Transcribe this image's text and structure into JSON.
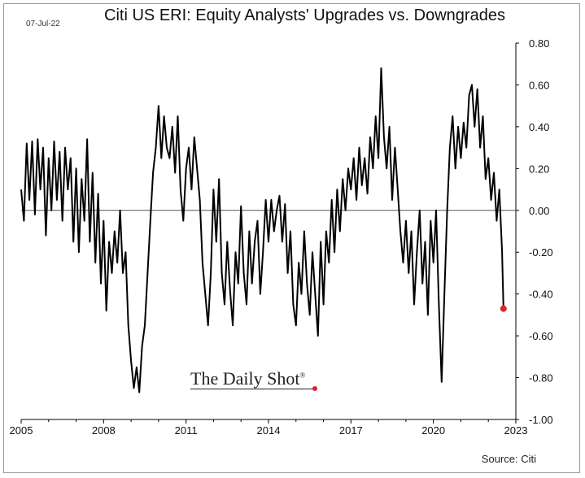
{
  "date_stamp": "07-Jul-22",
  "title": "Citi US ERI: Equity Analysts' Upgrades vs. Downgrades",
  "source": "Source: Citi",
  "watermark": {
    "text": "The Daily Shot",
    "mark": "®"
  },
  "colors": {
    "line": "#000000",
    "highlight": "#e0242a",
    "zero_line": "#555555",
    "axis": "#000000"
  },
  "chart_data": {
    "type": "line",
    "xlabel": "",
    "ylabel": "",
    "xlim": [
      2005.0,
      2023.0
    ],
    "ylim": [
      -1.0,
      0.8
    ],
    "x_ticks": [
      2005,
      2008,
      2011,
      2014,
      2017,
      2020,
      2023
    ],
    "x_tick_labels": [
      "2005",
      "2008",
      "2011",
      "2014",
      "2017",
      "2020",
      "2023"
    ],
    "y_ticks": [
      0.8,
      0.6,
      0.4,
      0.2,
      0.0,
      -0.2,
      -0.4,
      -0.6,
      -0.8,
      -1.0
    ],
    "y_tick_labels": [
      "0.80",
      "0.60",
      "0.40",
      "0.20",
      "0.00",
      "-0.20",
      "-0.40",
      "-0.60",
      "-0.80",
      "-1.00"
    ],
    "y_axis_side": "right",
    "grid": false,
    "zero_line": true,
    "series": [
      {
        "points": [
          [
            2005.0,
            0.1
          ],
          [
            2005.1,
            -0.05
          ],
          [
            2005.2,
            0.32
          ],
          [
            2005.3,
            0.05
          ],
          [
            2005.4,
            0.33
          ],
          [
            2005.5,
            -0.02
          ],
          [
            2005.6,
            0.34
          ],
          [
            2005.7,
            0.1
          ],
          [
            2005.8,
            0.3
          ],
          [
            2005.9,
            -0.12
          ],
          [
            2006.0,
            0.25
          ],
          [
            2006.1,
            0.0
          ],
          [
            2006.2,
            0.33
          ],
          [
            2006.3,
            0.05
          ],
          [
            2006.4,
            0.28
          ],
          [
            2006.5,
            -0.05
          ],
          [
            2006.6,
            0.3
          ],
          [
            2006.7,
            0.1
          ],
          [
            2006.8,
            0.25
          ],
          [
            2006.9,
            -0.15
          ],
          [
            2007.0,
            0.2
          ],
          [
            2007.1,
            -0.2
          ],
          [
            2007.2,
            0.15
          ],
          [
            2007.3,
            -0.05
          ],
          [
            2007.4,
            0.34
          ],
          [
            2007.5,
            -0.15
          ],
          [
            2007.6,
            0.18
          ],
          [
            2007.7,
            -0.25
          ],
          [
            2007.8,
            0.08
          ],
          [
            2007.9,
            -0.35
          ],
          [
            2008.0,
            -0.05
          ],
          [
            2008.1,
            -0.48
          ],
          [
            2008.2,
            -0.15
          ],
          [
            2008.3,
            -0.3
          ],
          [
            2008.4,
            -0.1
          ],
          [
            2008.5,
            -0.25
          ],
          [
            2008.6,
            0.0
          ],
          [
            2008.7,
            -0.3
          ],
          [
            2008.8,
            -0.2
          ],
          [
            2008.9,
            -0.55
          ],
          [
            2009.0,
            -0.72
          ],
          [
            2009.1,
            -0.85
          ],
          [
            2009.2,
            -0.75
          ],
          [
            2009.3,
            -0.87
          ],
          [
            2009.4,
            -0.65
          ],
          [
            2009.5,
            -0.55
          ],
          [
            2009.6,
            -0.3
          ],
          [
            2009.7,
            -0.05
          ],
          [
            2009.8,
            0.18
          ],
          [
            2009.9,
            0.3
          ],
          [
            2010.0,
            0.5
          ],
          [
            2010.1,
            0.25
          ],
          [
            2010.2,
            0.45
          ],
          [
            2010.3,
            0.3
          ],
          [
            2010.4,
            0.25
          ],
          [
            2010.5,
            0.4
          ],
          [
            2010.6,
            0.18
          ],
          [
            2010.7,
            0.45
          ],
          [
            2010.8,
            0.1
          ],
          [
            2010.9,
            -0.05
          ],
          [
            2011.0,
            0.2
          ],
          [
            2011.1,
            0.3
          ],
          [
            2011.2,
            0.1
          ],
          [
            2011.3,
            0.35
          ],
          [
            2011.4,
            0.2
          ],
          [
            2011.5,
            0.05
          ],
          [
            2011.6,
            -0.25
          ],
          [
            2011.7,
            -0.4
          ],
          [
            2011.8,
            -0.55
          ],
          [
            2011.9,
            -0.3
          ],
          [
            2012.0,
            0.1
          ],
          [
            2012.1,
            -0.15
          ],
          [
            2012.2,
            0.15
          ],
          [
            2012.3,
            -0.3
          ],
          [
            2012.4,
            -0.45
          ],
          [
            2012.5,
            -0.15
          ],
          [
            2012.6,
            -0.38
          ],
          [
            2012.7,
            -0.55
          ],
          [
            2012.8,
            -0.2
          ],
          [
            2012.9,
            -0.35
          ],
          [
            2013.0,
            0.02
          ],
          [
            2013.1,
            -0.3
          ],
          [
            2013.2,
            -0.45
          ],
          [
            2013.3,
            -0.1
          ],
          [
            2013.4,
            -0.35
          ],
          [
            2013.5,
            -0.15
          ],
          [
            2013.6,
            -0.05
          ],
          [
            2013.7,
            -0.4
          ],
          [
            2013.8,
            -0.2
          ],
          [
            2013.9,
            0.05
          ],
          [
            2014.0,
            -0.15
          ],
          [
            2014.1,
            0.05
          ],
          [
            2014.2,
            -0.1
          ],
          [
            2014.3,
            0.0
          ],
          [
            2014.4,
            0.07
          ],
          [
            2014.5,
            -0.15
          ],
          [
            2014.6,
            0.03
          ],
          [
            2014.7,
            -0.3
          ],
          [
            2014.8,
            -0.1
          ],
          [
            2014.9,
            -0.45
          ],
          [
            2015.0,
            -0.55
          ],
          [
            2015.1,
            -0.25
          ],
          [
            2015.2,
            -0.4
          ],
          [
            2015.3,
            -0.1
          ],
          [
            2015.4,
            -0.35
          ],
          [
            2015.5,
            -0.5
          ],
          [
            2015.6,
            -0.2
          ],
          [
            2015.7,
            -0.4
          ],
          [
            2015.8,
            -0.6
          ],
          [
            2015.9,
            -0.15
          ],
          [
            2016.0,
            -0.45
          ],
          [
            2016.1,
            -0.1
          ],
          [
            2016.2,
            -0.25
          ],
          [
            2016.3,
            0.05
          ],
          [
            2016.4,
            -0.2
          ],
          [
            2016.5,
            0.1
          ],
          [
            2016.6,
            -0.1
          ],
          [
            2016.7,
            0.15
          ],
          [
            2016.8,
            0.0
          ],
          [
            2016.9,
            0.2
          ],
          [
            2017.0,
            0.1
          ],
          [
            2017.1,
            0.25
          ],
          [
            2017.2,
            0.05
          ],
          [
            2017.3,
            0.3
          ],
          [
            2017.4,
            0.12
          ],
          [
            2017.5,
            0.25
          ],
          [
            2017.6,
            0.08
          ],
          [
            2017.7,
            0.35
          ],
          [
            2017.8,
            0.2
          ],
          [
            2017.9,
            0.45
          ],
          [
            2018.0,
            0.25
          ],
          [
            2018.1,
            0.68
          ],
          [
            2018.2,
            0.35
          ],
          [
            2018.3,
            0.2
          ],
          [
            2018.4,
            0.4
          ],
          [
            2018.5,
            0.05
          ],
          [
            2018.6,
            0.3
          ],
          [
            2018.7,
            0.1
          ],
          [
            2018.8,
            -0.1
          ],
          [
            2018.9,
            -0.25
          ],
          [
            2019.0,
            -0.05
          ],
          [
            2019.1,
            -0.3
          ],
          [
            2019.2,
            -0.1
          ],
          [
            2019.3,
            -0.45
          ],
          [
            2019.4,
            -0.2
          ],
          [
            2019.5,
            0.0
          ],
          [
            2019.6,
            -0.35
          ],
          [
            2019.7,
            -0.15
          ],
          [
            2019.8,
            -0.5
          ],
          [
            2019.9,
            -0.05
          ],
          [
            2020.0,
            -0.25
          ],
          [
            2020.1,
            0.0
          ],
          [
            2020.2,
            -0.45
          ],
          [
            2020.3,
            -0.82
          ],
          [
            2020.4,
            -0.4
          ],
          [
            2020.5,
            0.0
          ],
          [
            2020.6,
            0.3
          ],
          [
            2020.7,
            0.45
          ],
          [
            2020.8,
            0.2
          ],
          [
            2020.9,
            0.4
          ],
          [
            2021.0,
            0.25
          ],
          [
            2021.1,
            0.42
          ],
          [
            2021.2,
            0.3
          ],
          [
            2021.3,
            0.55
          ],
          [
            2021.4,
            0.6
          ],
          [
            2021.5,
            0.4
          ],
          [
            2021.6,
            0.58
          ],
          [
            2021.7,
            0.3
          ],
          [
            2021.8,
            0.45
          ],
          [
            2021.9,
            0.15
          ],
          [
            2022.0,
            0.25
          ],
          [
            2022.1,
            0.05
          ],
          [
            2022.2,
            0.18
          ],
          [
            2022.3,
            -0.05
          ],
          [
            2022.4,
            0.1
          ],
          [
            2022.5,
            -0.2
          ],
          [
            2022.55,
            -0.47
          ]
        ]
      }
    ],
    "last_point": {
      "x": 2022.55,
      "y": -0.47
    }
  }
}
